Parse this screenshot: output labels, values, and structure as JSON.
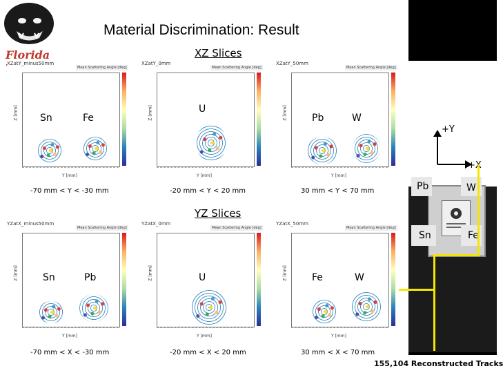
{
  "slide_title": "Material Discrimination: Result",
  "logo_text": "Florida Tech",
  "xz_heading": "XZ Slices",
  "yz_heading": "YZ Slices",
  "colorbar_label": "Mean Scattering Angle [deg]",
  "axis_labels": {
    "x": "Y [mm]",
    "x2": "Y [mm]",
    "z": "Z [mm]"
  },
  "xz_plots": [
    {
      "header": "XZatY_minus50mm",
      "materials": [
        "Sn",
        "Fe"
      ],
      "range": "-70 mm < Y < -30 mm"
    },
    {
      "header": "XZatY_0mm",
      "materials": [
        "U"
      ],
      "range": "-20 mm < Y < 20 mm"
    },
    {
      "header": "XZatY_50mm",
      "materials": [
        "Pb",
        "W"
      ],
      "range": "30 mm < Y < 70 mm"
    }
  ],
  "yz_plots": [
    {
      "header": "YZatX_minus50mm",
      "materials": [
        "Sn",
        "Pb"
      ],
      "range": "-70 mm < X < -30 mm"
    },
    {
      "header": "YZatX_0mm",
      "materials": [
        "U"
      ],
      "range": "-20 mm < X < 20 mm"
    },
    {
      "header": "YZatX_50mm",
      "materials": [
        "Fe",
        "W"
      ],
      "range": "30 mm < X < 70 mm"
    }
  ],
  "photo": {
    "axis_y": "+Y",
    "axis_x": "+X",
    "labels": [
      "Pb",
      "W",
      "Sn",
      "Fe"
    ]
  },
  "tracks_text": "155,104 Reconstructed Tracks"
}
